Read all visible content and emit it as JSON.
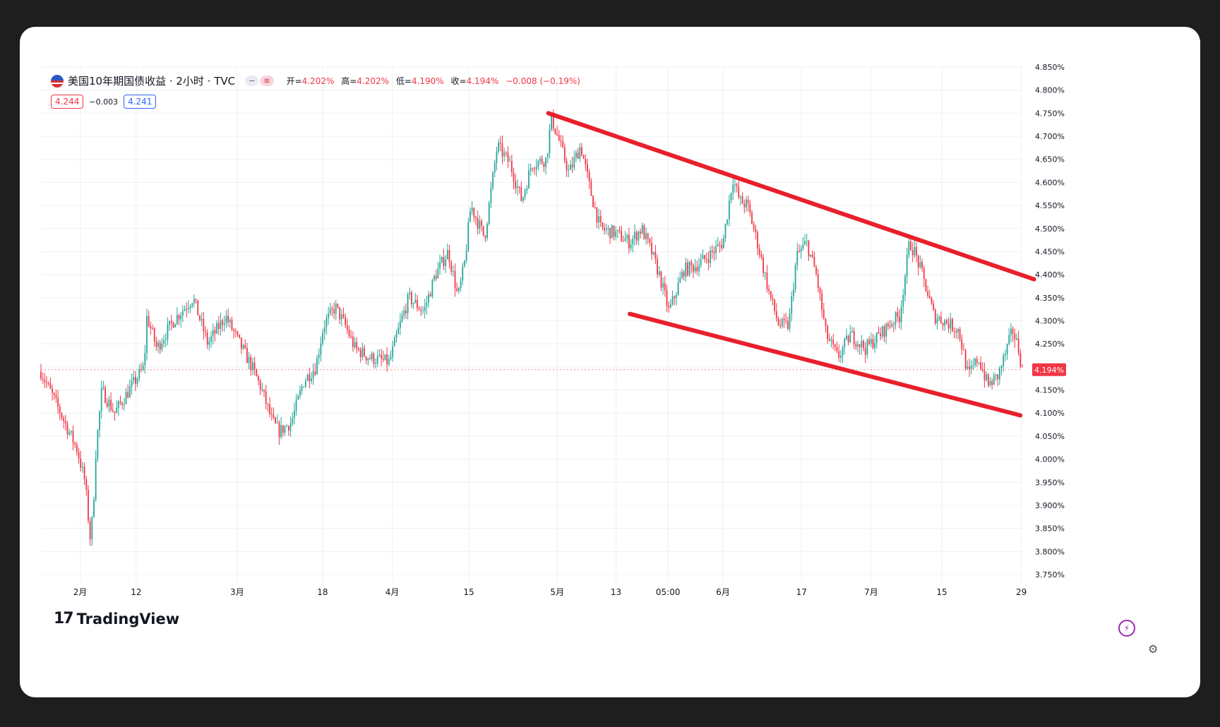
{
  "legend": {
    "symbol": "美国10年期国债收益 · 2小时 · TVC",
    "open_label": "开=",
    "open": "4.202%",
    "high_label": "高=",
    "high": "4.202%",
    "low_label": "低=",
    "low": "4.190%",
    "close_label": "收=",
    "close": "4.194%",
    "change": "−0.008 (−0.19%)",
    "sell_price": "4.244",
    "spread": "−0.003",
    "buy_price": "4.241"
  },
  "branding": "TradingView",
  "icons": [
    "flag-icon",
    "lightning-icon",
    "gear-icon"
  ],
  "colors": {
    "up": "#26a69a",
    "down": "#f23645",
    "trendline": "#e8202c"
  },
  "chart_data": {
    "type": "candlestick",
    "title": "美国10年期国债收益 · 2小时 · TVC",
    "current_price_label": "4.194%",
    "ylim": [
      3.75,
      4.85
    ],
    "y_ticks": [
      "4.850%",
      "4.800%",
      "4.750%",
      "4.700%",
      "4.650%",
      "4.600%",
      "4.550%",
      "4.500%",
      "4.450%",
      "4.400%",
      "4.350%",
      "4.300%",
      "4.250%",
      "4.200%",
      "4.150%",
      "4.100%",
      "4.050%",
      "4.000%",
      "3.950%",
      "3.900%",
      "3.850%",
      "3.800%",
      "3.750%"
    ],
    "x_ticks": [
      {
        "label": "2月",
        "t": 0.04
      },
      {
        "label": "12",
        "t": 0.097
      },
      {
        "label": "3月",
        "t": 0.2
      },
      {
        "label": "18",
        "t": 0.287
      },
      {
        "label": "4月",
        "t": 0.358
      },
      {
        "label": "15",
        "t": 0.436
      },
      {
        "label": "5月",
        "t": 0.526
      },
      {
        "label": "13",
        "t": 0.586
      },
      {
        "label": "05:00",
        "t": 0.639
      },
      {
        "label": "6月",
        "t": 0.695
      },
      {
        "label": "17",
        "t": 0.775
      },
      {
        "label": "7月",
        "t": 0.846
      },
      {
        "label": "15",
        "t": 0.918
      },
      {
        "label": "29",
        "t": 0.999
      }
    ],
    "path_points": [
      [
        0.0,
        4.19
      ],
      [
        0.02,
        4.1
      ],
      [
        0.037,
        4.02
      ],
      [
        0.045,
        3.95
      ],
      [
        0.05,
        3.83
      ],
      [
        0.053,
        3.88
      ],
      [
        0.056,
        4.02
      ],
      [
        0.062,
        4.15
      ],
      [
        0.075,
        4.1
      ],
      [
        0.09,
        4.15
      ],
      [
        0.105,
        4.2
      ],
      [
        0.108,
        4.31
      ],
      [
        0.118,
        4.24
      ],
      [
        0.135,
        4.3
      ],
      [
        0.155,
        4.35
      ],
      [
        0.17,
        4.25
      ],
      [
        0.188,
        4.31
      ],
      [
        0.205,
        4.24
      ],
      [
        0.215,
        4.2
      ],
      [
        0.225,
        4.15
      ],
      [
        0.236,
        4.08
      ],
      [
        0.243,
        4.06
      ],
      [
        0.255,
        4.08
      ],
      [
        0.268,
        4.17
      ],
      [
        0.28,
        4.2
      ],
      [
        0.288,
        4.29
      ],
      [
        0.3,
        4.33
      ],
      [
        0.31,
        4.29
      ],
      [
        0.32,
        4.24
      ],
      [
        0.335,
        4.22
      ],
      [
        0.355,
        4.21
      ],
      [
        0.367,
        4.3
      ],
      [
        0.375,
        4.35
      ],
      [
        0.39,
        4.32
      ],
      [
        0.402,
        4.4
      ],
      [
        0.415,
        4.45
      ],
      [
        0.425,
        4.35
      ],
      [
        0.432,
        4.43
      ],
      [
        0.438,
        4.55
      ],
      [
        0.452,
        4.48
      ],
      [
        0.465,
        4.68
      ],
      [
        0.478,
        4.64
      ],
      [
        0.49,
        4.56
      ],
      [
        0.5,
        4.64
      ],
      [
        0.515,
        4.65
      ],
      [
        0.52,
        4.74
      ],
      [
        0.528,
        4.69
      ],
      [
        0.538,
        4.62
      ],
      [
        0.55,
        4.68
      ],
      [
        0.56,
        4.58
      ],
      [
        0.57,
        4.5
      ],
      [
        0.585,
        4.49
      ],
      [
        0.6,
        4.47
      ],
      [
        0.612,
        4.5
      ],
      [
        0.622,
        4.45
      ],
      [
        0.63,
        4.4
      ],
      [
        0.64,
        4.32
      ],
      [
        0.655,
        4.41
      ],
      [
        0.668,
        4.42
      ],
      [
        0.68,
        4.44
      ],
      [
        0.695,
        4.47
      ],
      [
        0.705,
        4.61
      ],
      [
        0.712,
        4.56
      ],
      [
        0.72,
        4.55
      ],
      [
        0.73,
        4.47
      ],
      [
        0.742,
        4.36
      ],
      [
        0.752,
        4.29
      ],
      [
        0.762,
        4.29
      ],
      [
        0.77,
        4.44
      ],
      [
        0.78,
        4.47
      ],
      [
        0.79,
        4.4
      ],
      [
        0.8,
        4.27
      ],
      [
        0.812,
        4.22
      ],
      [
        0.825,
        4.27
      ],
      [
        0.84,
        4.24
      ],
      [
        0.855,
        4.27
      ],
      [
        0.868,
        4.3
      ],
      [
        0.875,
        4.31
      ],
      [
        0.885,
        4.47
      ],
      [
        0.89,
        4.45
      ],
      [
        0.898,
        4.4
      ],
      [
        0.91,
        4.31
      ],
      [
        0.92,
        4.3
      ],
      [
        0.935,
        4.28
      ],
      [
        0.945,
        4.18
      ],
      [
        0.955,
        4.22
      ],
      [
        0.965,
        4.16
      ],
      [
        0.975,
        4.18
      ],
      [
        0.983,
        4.23
      ],
      [
        0.99,
        4.28
      ],
      [
        0.996,
        4.24
      ],
      [
        1.0,
        4.194
      ]
    ],
    "trendlines": [
      {
        "name": "upper",
        "from": [
          0.517,
          4.75
        ],
        "to": [
          1.012,
          4.39
        ]
      },
      {
        "name": "lower",
        "from": [
          0.6,
          4.315
        ],
        "to": [
          0.998,
          4.095
        ]
      }
    ],
    "grid": true
  }
}
